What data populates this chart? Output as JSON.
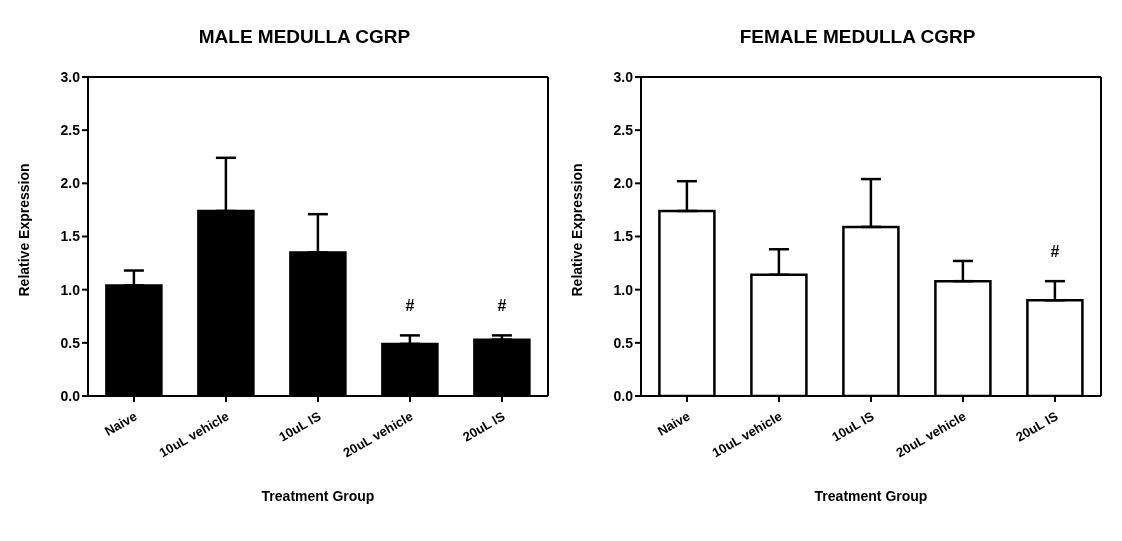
{
  "chart_data": [
    {
      "type": "bar",
      "title": "MALE MEDULLA CGRP",
      "xlabel": "Treatment Group",
      "ylabel": "Relative Expression",
      "categories": [
        "Naive",
        "10uL vehicle",
        "10uL IS",
        "20uL vehicle",
        "20uL IS"
      ],
      "values": [
        1.04,
        1.74,
        1.35,
        0.49,
        0.53
      ],
      "errors": [
        [
          1.04,
          1.18
        ],
        [
          1.74,
          2.24
        ],
        [
          1.35,
          1.71
        ],
        [
          0.49,
          0.57
        ],
        [
          0.53,
          0.57
        ]
      ],
      "color": "#000000",
      "ylim": [
        0,
        3
      ],
      "yticks": [
        {
          "value": 0,
          "label": "0.0"
        },
        {
          "value": 0.5,
          "label": "0.5"
        },
        {
          "value": 1,
          "label": "1.0"
        },
        {
          "value": 1.5,
          "label": "1.5"
        },
        {
          "value": 2,
          "label": "2.0"
        },
        {
          "value": 2.5,
          "label": "2.5"
        },
        {
          "value": 3,
          "label": "3.0"
        }
      ],
      "annotations": [
        {
          "text": "#",
          "x": "20uL vehicle",
          "y": 0.57
        },
        {
          "text": "#",
          "x": "20uL IS",
          "y": 0.57
        }
      ]
    },
    {
      "type": "bar",
      "title": "FEMALE MEDULLA CGRP",
      "xlabel": "Treatment Group",
      "ylabel": "Relative Expression",
      "categories": [
        "Naive",
        "10uL vehicle",
        "10uL IS",
        "20uL vehicle",
        "20uL IS"
      ],
      "values": [
        1.74,
        1.14,
        1.59,
        1.08,
        0.9
      ],
      "errors": [
        [
          1.74,
          2.02
        ],
        [
          1.14,
          1.38
        ],
        [
          1.59,
          2.04
        ],
        [
          1.08,
          1.27
        ],
        [
          0.9,
          1.08
        ]
      ],
      "color": "#ffffff",
      "ylim": [
        0,
        3
      ],
      "yticks": [
        {
          "value": 0,
          "label": "0.0"
        },
        {
          "value": 0.5,
          "label": "0.5"
        },
        {
          "value": 1,
          "label": "1.0"
        },
        {
          "value": 1.5,
          "label": "1.5"
        },
        {
          "value": 2,
          "label": "2.0"
        },
        {
          "value": 2.5,
          "label": "2.5"
        },
        {
          "value": 3,
          "label": "3.0"
        }
      ],
      "annotations": [
        {
          "text": "#",
          "x": "20uL IS",
          "y": 1.08
        }
      ]
    }
  ]
}
